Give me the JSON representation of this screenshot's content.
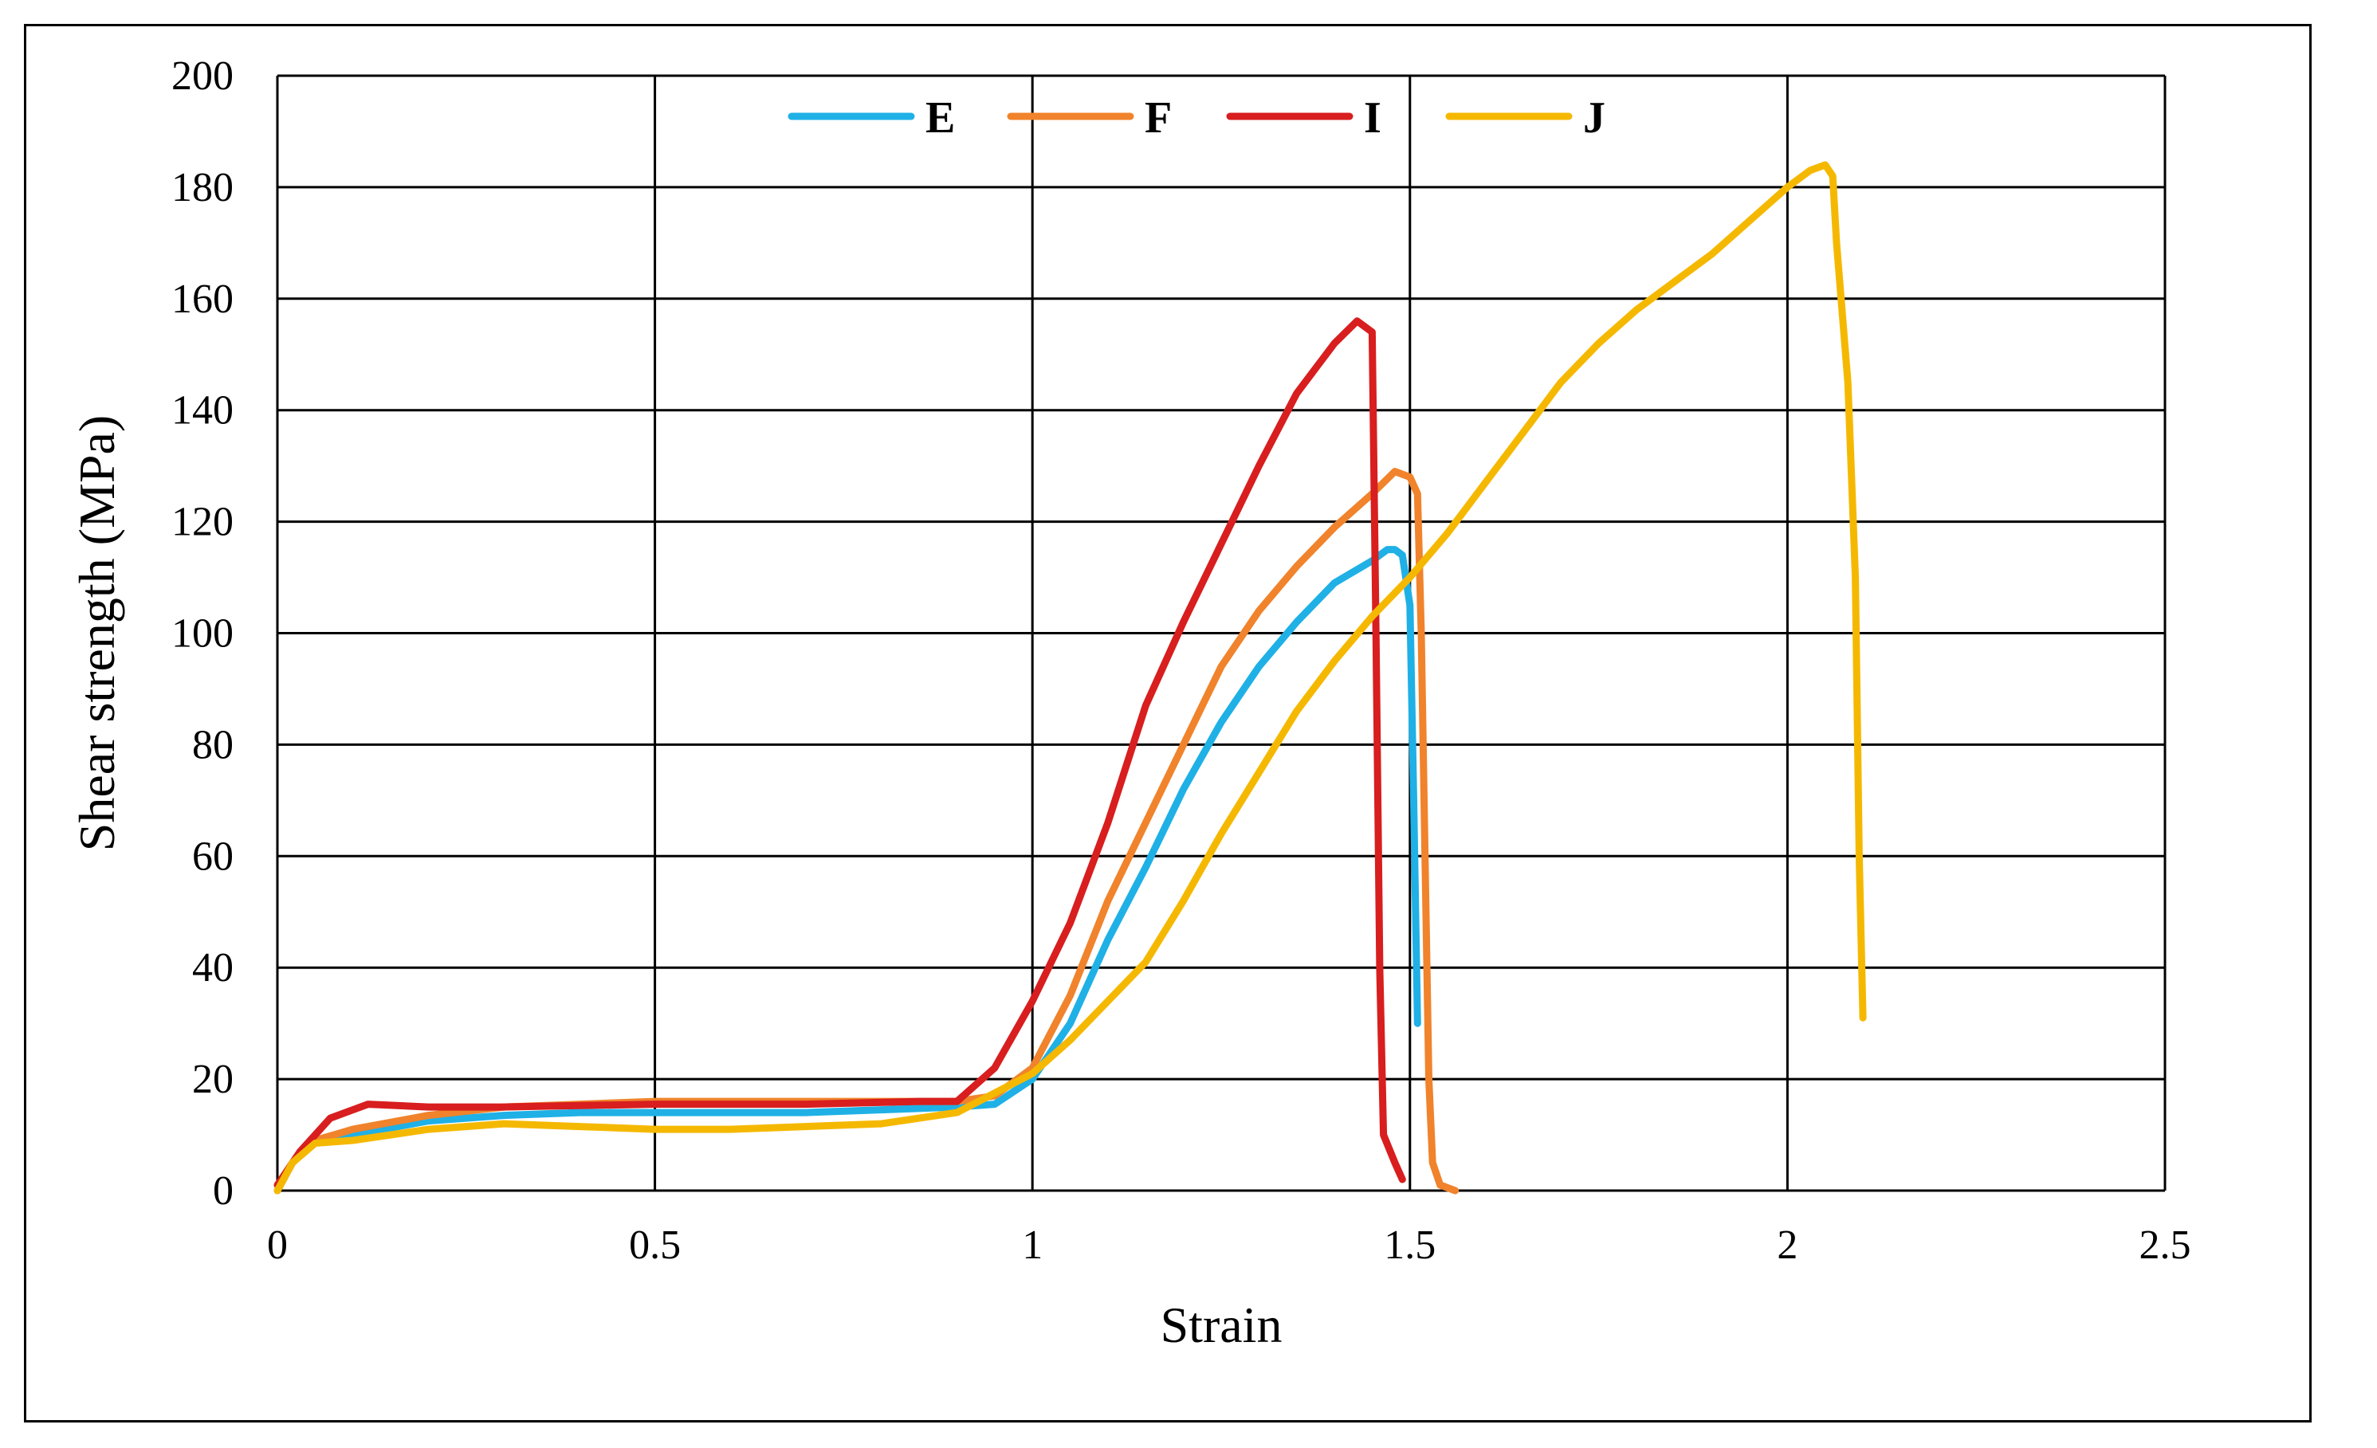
{
  "chart_data": {
    "type": "line",
    "title": "",
    "xlabel": "Strain",
    "ylabel": "Shear strength (MPa)",
    "xlim": [
      0,
      2.5
    ],
    "ylim": [
      0,
      200
    ],
    "x_ticks": [
      "0",
      "0.5",
      "1",
      "1.5",
      "2",
      "2.5"
    ],
    "y_ticks": [
      "0",
      "20",
      "40",
      "60",
      "80",
      "100",
      "120",
      "140",
      "160",
      "180",
      "200"
    ],
    "grid": true,
    "legend_position": "top",
    "series": [
      {
        "name": "E",
        "color": "#1fb0e6",
        "points": [
          [
            0,
            0
          ],
          [
            0.02,
            5
          ],
          [
            0.05,
            9
          ],
          [
            0.1,
            10
          ],
          [
            0.2,
            12.5
          ],
          [
            0.3,
            13.5
          ],
          [
            0.4,
            14
          ],
          [
            0.5,
            14
          ],
          [
            0.6,
            14
          ],
          [
            0.7,
            14
          ],
          [
            0.8,
            14.5
          ],
          [
            0.9,
            15
          ],
          [
            0.95,
            15.5
          ],
          [
            1.0,
            20
          ],
          [
            1.05,
            30
          ],
          [
            1.1,
            45
          ],
          [
            1.15,
            58
          ],
          [
            1.2,
            72
          ],
          [
            1.25,
            84
          ],
          [
            1.3,
            94
          ],
          [
            1.35,
            102
          ],
          [
            1.4,
            109
          ],
          [
            1.45,
            113
          ],
          [
            1.47,
            115
          ],
          [
            1.48,
            115
          ],
          [
            1.49,
            114
          ],
          [
            1.5,
            105
          ],
          [
            1.505,
            70
          ],
          [
            1.51,
            30
          ]
        ]
      },
      {
        "name": "F",
        "color": "#f0832b",
        "points": [
          [
            0,
            0
          ],
          [
            0.02,
            5
          ],
          [
            0.05,
            9
          ],
          [
            0.1,
            11
          ],
          [
            0.2,
            13.5
          ],
          [
            0.3,
            15
          ],
          [
            0.4,
            15.5
          ],
          [
            0.5,
            16
          ],
          [
            0.6,
            16
          ],
          [
            0.7,
            16
          ],
          [
            0.8,
            16
          ],
          [
            0.9,
            16
          ],
          [
            0.95,
            17
          ],
          [
            1.0,
            22
          ],
          [
            1.05,
            35
          ],
          [
            1.1,
            52
          ],
          [
            1.15,
            66
          ],
          [
            1.2,
            80
          ],
          [
            1.25,
            94
          ],
          [
            1.3,
            104
          ],
          [
            1.35,
            112
          ],
          [
            1.4,
            119
          ],
          [
            1.45,
            125
          ],
          [
            1.48,
            129
          ],
          [
            1.5,
            128
          ],
          [
            1.51,
            125
          ],
          [
            1.515,
            100
          ],
          [
            1.52,
            60
          ],
          [
            1.525,
            20
          ],
          [
            1.53,
            5
          ],
          [
            1.54,
            1
          ],
          [
            1.56,
            0
          ]
        ]
      },
      {
        "name": "I",
        "color": "#d81e1e",
        "points": [
          [
            0,
            1
          ],
          [
            0.03,
            7
          ],
          [
            0.07,
            13
          ],
          [
            0.12,
            15.5
          ],
          [
            0.2,
            15
          ],
          [
            0.3,
            15
          ],
          [
            0.5,
            15.5
          ],
          [
            0.7,
            15.5
          ],
          [
            0.85,
            16
          ],
          [
            0.9,
            16
          ],
          [
            0.95,
            22
          ],
          [
            1.0,
            34
          ],
          [
            1.05,
            48
          ],
          [
            1.1,
            66
          ],
          [
            1.15,
            87
          ],
          [
            1.2,
            102
          ],
          [
            1.25,
            116
          ],
          [
            1.3,
            130
          ],
          [
            1.35,
            143
          ],
          [
            1.4,
            152
          ],
          [
            1.43,
            156
          ],
          [
            1.45,
            154
          ],
          [
            1.455,
            100
          ],
          [
            1.46,
            40
          ],
          [
            1.465,
            10
          ],
          [
            1.48,
            5
          ],
          [
            1.49,
            2
          ]
        ]
      },
      {
        "name": "J",
        "color": "#f5b800",
        "points": [
          [
            0,
            0
          ],
          [
            0.02,
            5
          ],
          [
            0.05,
            8.5
          ],
          [
            0.1,
            9
          ],
          [
            0.2,
            11
          ],
          [
            0.3,
            12
          ],
          [
            0.4,
            11.5
          ],
          [
            0.5,
            11
          ],
          [
            0.6,
            11
          ],
          [
            0.7,
            11.5
          ],
          [
            0.8,
            12
          ],
          [
            0.9,
            14
          ],
          [
            1.0,
            21
          ],
          [
            1.05,
            27
          ],
          [
            1.1,
            34
          ],
          [
            1.15,
            41
          ],
          [
            1.2,
            52
          ],
          [
            1.25,
            64
          ],
          [
            1.3,
            75
          ],
          [
            1.35,
            86
          ],
          [
            1.4,
            95
          ],
          [
            1.45,
            103
          ],
          [
            1.5,
            110
          ],
          [
            1.55,
            118
          ],
          [
            1.6,
            127
          ],
          [
            1.65,
            136
          ],
          [
            1.7,
            145
          ],
          [
            1.75,
            152
          ],
          [
            1.8,
            158
          ],
          [
            1.85,
            163
          ],
          [
            1.9,
            168
          ],
          [
            1.95,
            174
          ],
          [
            2.0,
            180
          ],
          [
            2.03,
            183
          ],
          [
            2.05,
            184
          ],
          [
            2.06,
            182
          ],
          [
            2.065,
            170
          ],
          [
            2.08,
            145
          ],
          [
            2.09,
            110
          ],
          [
            2.095,
            60
          ],
          [
            2.1,
            31
          ]
        ]
      }
    ]
  }
}
